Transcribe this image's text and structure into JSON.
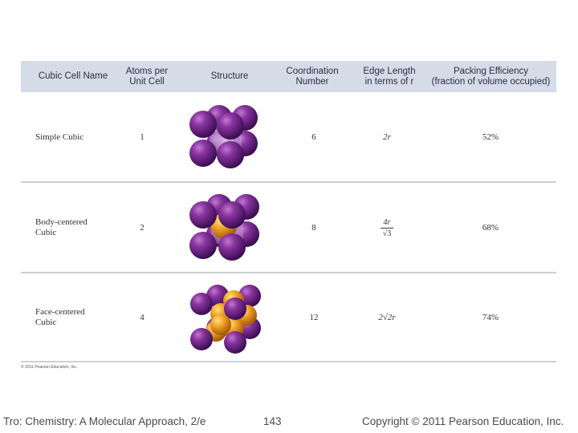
{
  "table": {
    "headers": {
      "name": "Cubic Cell Name",
      "atoms_l1": "Atoms per",
      "atoms_l2": "Unit Cell",
      "structure": "Structure",
      "coord_l1": "Coordination",
      "coord_l2": "Number",
      "edge_l1": "Edge Length",
      "edge_l2": "in terms of r",
      "pack_l1": "Packing Efficiency",
      "pack_l2": "(fraction of volume occupied)"
    },
    "rows": [
      {
        "name_l1": "Simple Cubic",
        "name_l2": "",
        "atoms": "1",
        "coordination": "6",
        "edge": "2r",
        "packing": "52%"
      },
      {
        "name_l1": "Body-centered",
        "name_l2": "Cubic",
        "atoms": "2",
        "coordination": "8",
        "edge_num": "4r",
        "edge_den": "√3",
        "packing": "68%"
      },
      {
        "name_l1": "Face-centered",
        "name_l2": "Cubic",
        "atoms": "4",
        "coordination": "12",
        "edge": "2√2r",
        "packing": "74%"
      }
    ],
    "copyright_small": "© 2011 Pearson Education, Inc."
  },
  "footer": {
    "left": "Tro: Chemistry: A Molecular Approach, 2/e",
    "center": "143",
    "right": "Copyright © 2011 Pearson Education, Inc."
  },
  "colors": {
    "header_bg": "#d6dbe8",
    "corner_atom": "#7a2a8c",
    "center_atom": "#f0a030"
  }
}
